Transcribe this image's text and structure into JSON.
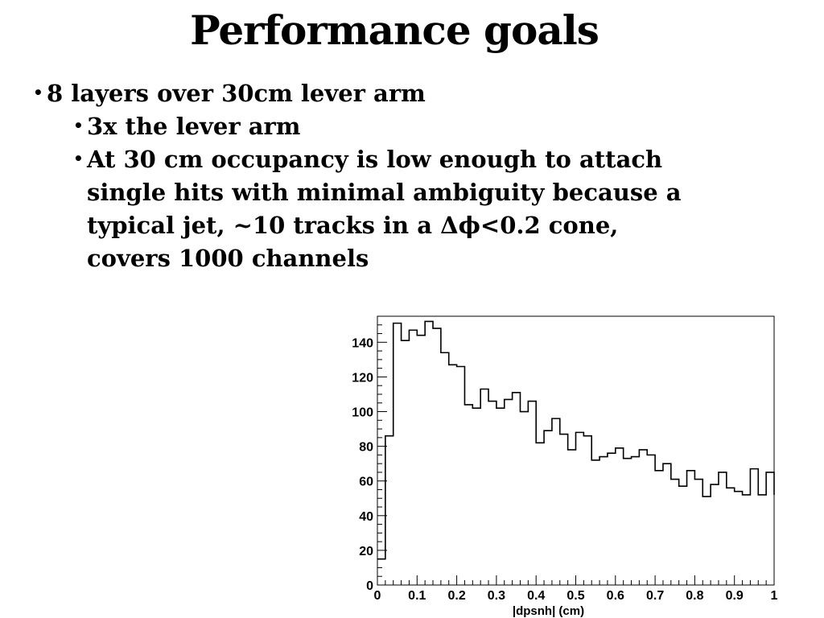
{
  "slide": {
    "title": "Performance goals",
    "bullets": [
      {
        "level": 1,
        "text": "8 layers over 30cm lever arm"
      },
      {
        "level": 2,
        "text": "3x the lever arm"
      },
      {
        "level": 2,
        "text": "At 30 cm occupancy is low enough to attach"
      },
      {
        "level": 2,
        "text": "single hits with minimal ambiguity because a",
        "continuation": true
      },
      {
        "level": 2,
        "text": "typical jet, ~10 tracks in a Δϕ<0.2 cone,",
        "continuation": true
      },
      {
        "level": 2,
        "text": "covers 1000 channels",
        "continuation": true
      }
    ],
    "bullet_char": "•"
  },
  "chart_data": {
    "type": "histogram",
    "title": "",
    "xlabel": "|dpsnh| (cm)",
    "ylabel": "",
    "xlim": [
      0,
      1
    ],
    "ylim": [
      0,
      155
    ],
    "xticks": [
      "0",
      "0.1",
      "0.2",
      "0.3",
      "0.4",
      "0.5",
      "0.6",
      "0.7",
      "0.8",
      "0.9",
      "1"
    ],
    "yticks": [
      "0",
      "20",
      "40",
      "60",
      "80",
      "100",
      "120",
      "140"
    ],
    "bin_width": 0.02,
    "values": [
      15,
      86,
      151,
      141,
      147,
      144,
      152,
      148,
      134,
      127,
      126,
      104,
      102,
      113,
      106,
      102,
      107,
      111,
      100,
      106,
      82,
      89,
      96,
      87,
      78,
      88,
      86,
      72,
      74,
      76,
      79,
      73,
      74,
      78,
      75,
      66,
      70,
      61,
      57,
      66,
      61,
      51,
      58,
      65,
      56,
      54,
      52,
      67,
      52,
      65,
      52
    ],
    "line_color": "#000000",
    "grid": false
  }
}
